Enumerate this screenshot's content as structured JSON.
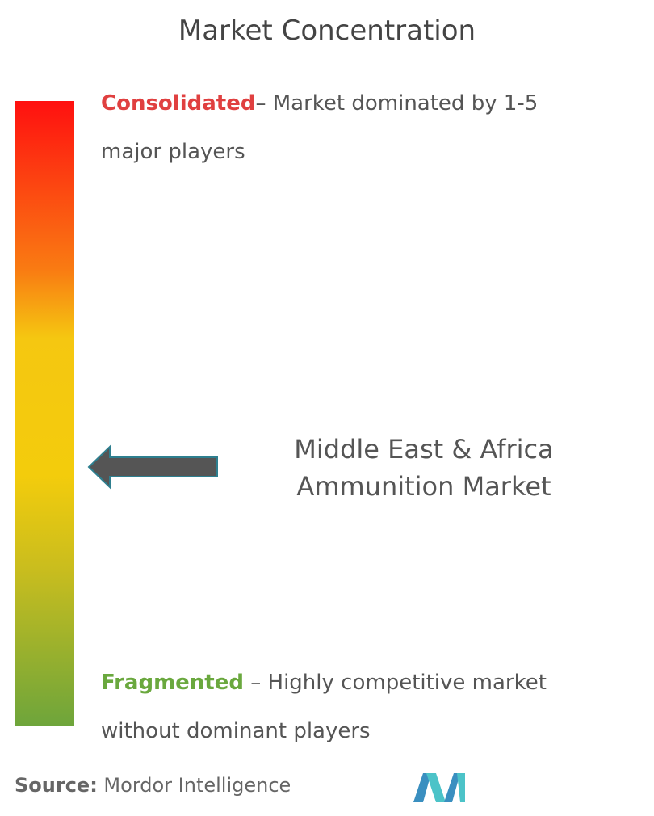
{
  "title": "Market Concentration",
  "consolidated": {
    "label": "Consolidated",
    "description": "– Market dominated by 1-5 major players"
  },
  "fragmented": {
    "label": "Fragmented",
    "description": " – Highly competitive market without dominant players"
  },
  "market": "Middle East & Africa Ammunition Market",
  "source": {
    "label": "Source:",
    "text": " Mordor Intelligence"
  }
}
